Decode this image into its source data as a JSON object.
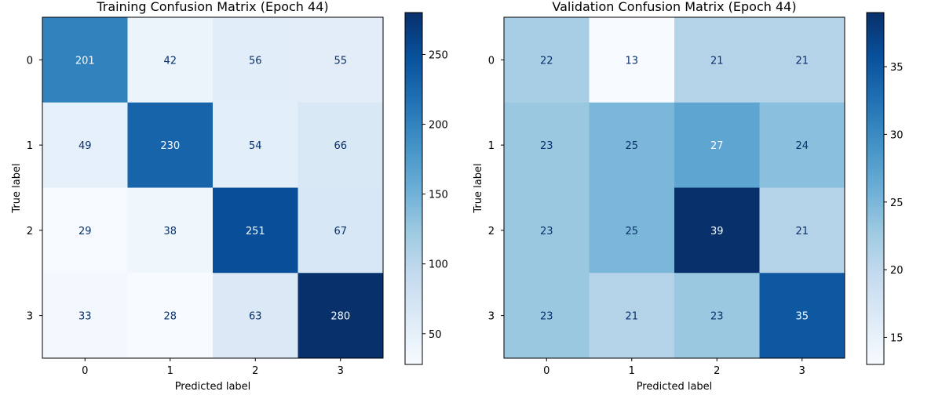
{
  "chart_data": [
    {
      "type": "heatmap",
      "title": "Training Confusion Matrix (Epoch 44)",
      "xlabel": "Predicted label",
      "ylabel": "True label",
      "x_categories": [
        "0",
        "1",
        "2",
        "3"
      ],
      "y_categories": [
        "0",
        "1",
        "2",
        "3"
      ],
      "values": [
        [
          201,
          42,
          56,
          55
        ],
        [
          49,
          230,
          54,
          66
        ],
        [
          29,
          38,
          251,
          67
        ],
        [
          33,
          28,
          63,
          280
        ]
      ],
      "colormap": "Blues",
      "colorbar": {
        "range": [
          28,
          280
        ],
        "ticks": [
          50,
          100,
          150,
          200,
          250
        ]
      }
    },
    {
      "type": "heatmap",
      "title": "Validation Confusion Matrix (Epoch 44)",
      "xlabel": "Predicted label",
      "ylabel": "True label",
      "x_categories": [
        "0",
        "1",
        "2",
        "3"
      ],
      "y_categories": [
        "0",
        "1",
        "2",
        "3"
      ],
      "values": [
        [
          22,
          13,
          21,
          21
        ],
        [
          23,
          25,
          27,
          24
        ],
        [
          23,
          25,
          39,
          21
        ],
        [
          23,
          21,
          23,
          35
        ]
      ],
      "colormap": "Blues",
      "colorbar": {
        "range": [
          13,
          39
        ],
        "ticks": [
          15,
          20,
          25,
          30,
          35
        ]
      }
    }
  ]
}
